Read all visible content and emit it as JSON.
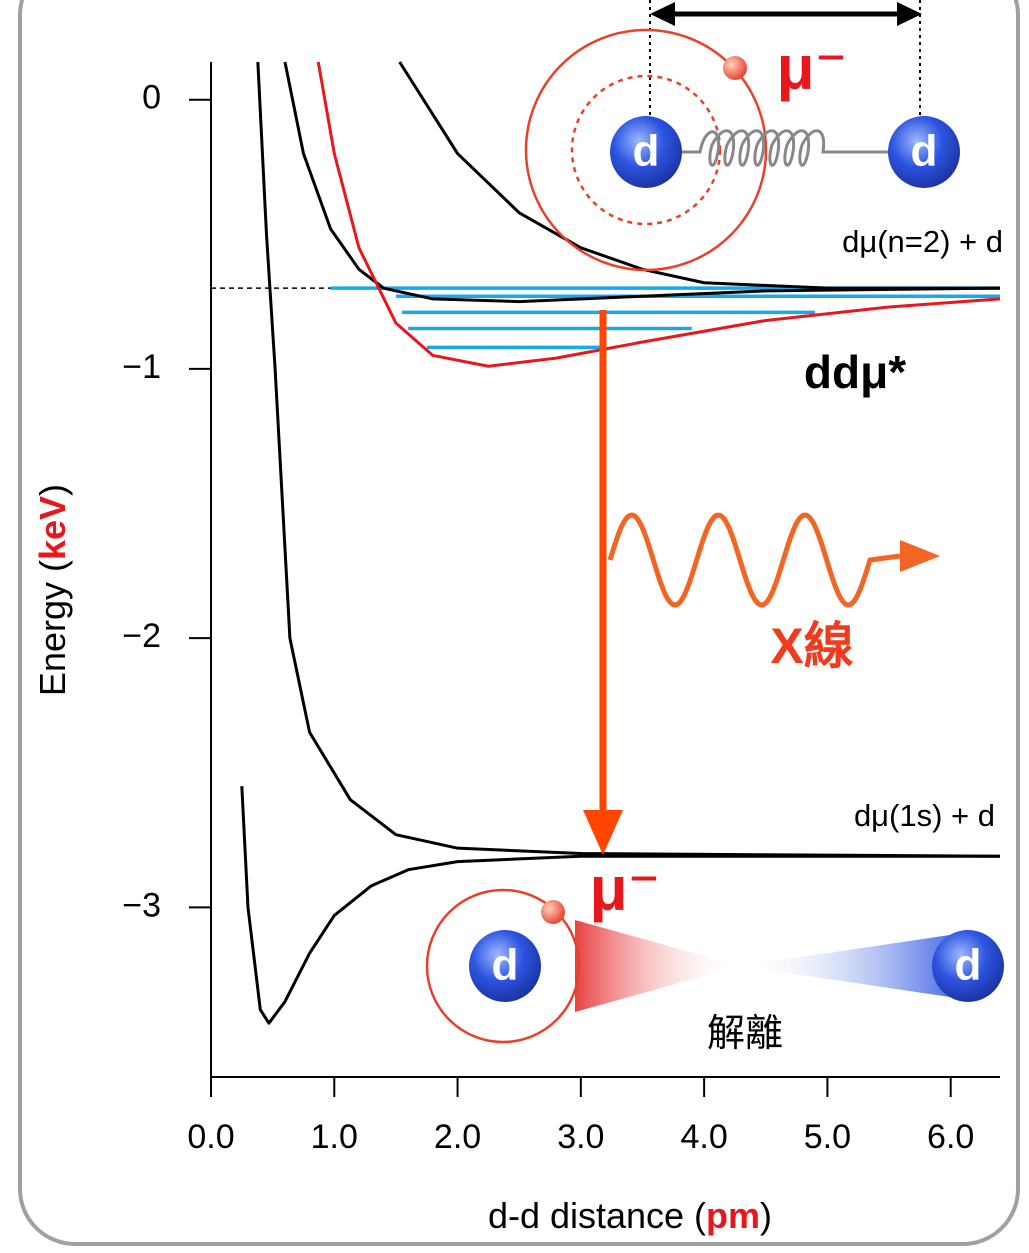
{
  "chart_data": {
    "type": "line",
    "y_label_parts": [
      "Energy (",
      "keV",
      ")"
    ],
    "x_label_parts": [
      "d-d distance (",
      "pm",
      ")"
    ],
    "xlim": [
      0,
      6.4
    ],
    "ylim": [
      -3.63,
      0.14
    ],
    "xticks": [
      {
        "value": 0,
        "label": "0.0"
      },
      {
        "value": 1,
        "label": "1.0"
      },
      {
        "value": 2,
        "label": "2.0"
      },
      {
        "value": 3,
        "label": "3.0"
      },
      {
        "value": 4,
        "label": "4.0"
      },
      {
        "value": 5,
        "label": "5.0"
      },
      {
        "value": 6,
        "label": "6.0"
      }
    ],
    "yticks": [
      0,
      {
        "value": -1,
        "label": "−1"
      },
      {
        "value": -2,
        "label": "−2"
      },
      {
        "value": -3,
        "label": "−3"
      }
    ],
    "series": [
      {
        "color": "#000000",
        "x": [
          0.25,
          0.3,
          0.4,
          0.47,
          0.6,
          0.8,
          1.0,
          1.3,
          1.6,
          2.0,
          3.0,
          6.4
        ],
        "values": [
          -2.55,
          -3.0,
          -3.38,
          -3.43,
          -3.35,
          -3.17,
          -3.03,
          -2.92,
          -2.86,
          -2.83,
          -2.81,
          -2.81
        ]
      },
      {
        "color": "#000000",
        "x": [
          0.38,
          0.45,
          0.52,
          0.64,
          0.8,
          1.13,
          1.5,
          2.0,
          3.0,
          6.4
        ],
        "values": [
          0.14,
          -0.5,
          -1.0,
          -2.0,
          -2.35,
          -2.6,
          -2.73,
          -2.78,
          -2.8,
          -2.81
        ]
      },
      {
        "color": "#000000",
        "x": [
          0.6,
          0.75,
          0.97,
          1.2,
          1.4,
          1.8,
          2.5,
          3.5,
          4.5,
          6.4
        ],
        "values": [
          0.14,
          -0.2,
          -0.48,
          -0.63,
          -0.7,
          -0.74,
          -0.75,
          -0.73,
          -0.71,
          -0.7
        ]
      },
      {
        "color": "#e8171c",
        "x": [
          0.87,
          1.0,
          1.2,
          1.5,
          1.8,
          2.25,
          2.8,
          3.5,
          4.5,
          5.5,
          6.4
        ],
        "values": [
          0.14,
          -0.2,
          -0.55,
          -0.83,
          -0.95,
          -0.99,
          -0.96,
          -0.9,
          -0.82,
          -0.77,
          -0.74
        ]
      },
      {
        "color": "#000000",
        "x": [
          1.53,
          2.0,
          2.5,
          3.0,
          3.5,
          4.0,
          5.0,
          6.4
        ],
        "values": [
          0.14,
          -0.2,
          -0.42,
          -0.55,
          -0.63,
          -0.68,
          -0.7,
          -0.7
        ]
      }
    ],
    "reference_line": -0.7,
    "levels_color": "#1aa7ec",
    "levels": [
      {
        "value": -0.7,
        "x": [
          0.97,
          6.4
        ]
      },
      {
        "value": -0.73,
        "x": [
          1.5,
          6.4
        ]
      },
      {
        "value": -0.79,
        "x": [
          1.55,
          4.9
        ]
      },
      {
        "value": -0.85,
        "x": [
          1.6,
          3.9
        ]
      },
      {
        "value": -0.92,
        "x": [
          1.75,
          3.2
        ]
      }
    ],
    "annotations": [
      "μ⁻",
      "d",
      "d",
      "dμ(n=2) + d",
      "ddμ*",
      "X線",
      "dμ(1s) + d",
      "μ⁻",
      "d",
      "d",
      "解離"
    ]
  }
}
